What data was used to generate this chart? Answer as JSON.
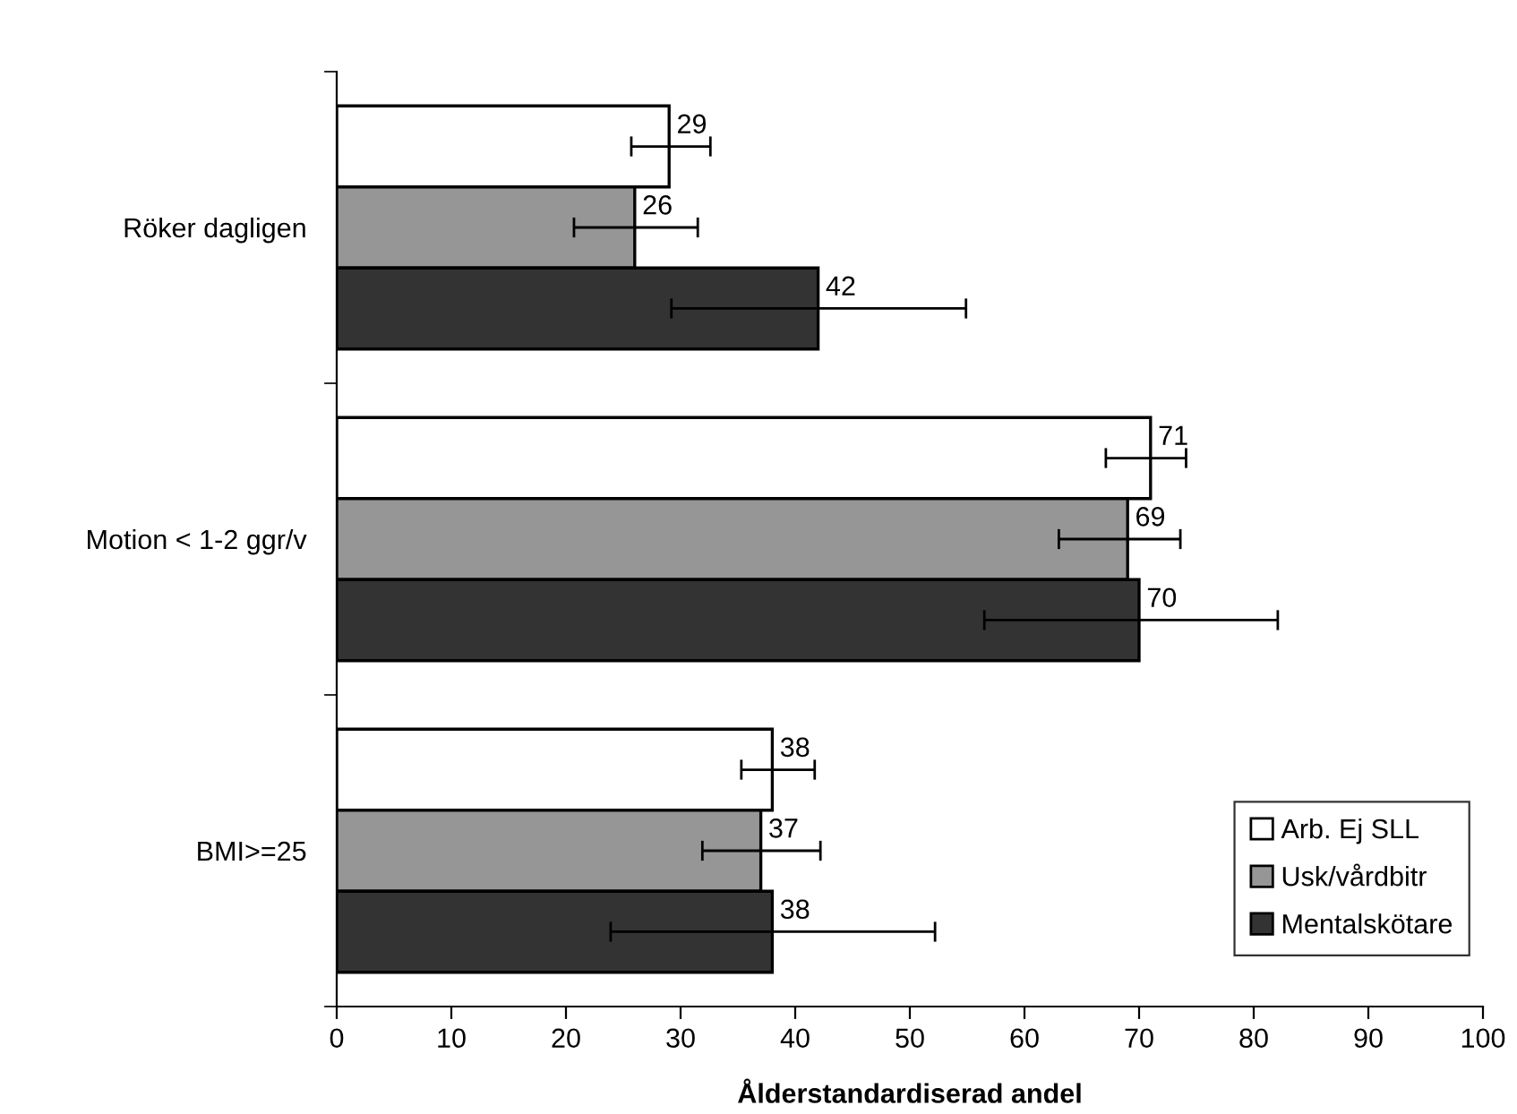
{
  "chart_data": {
    "type": "bar",
    "orientation": "horizontal",
    "xlabel": "Ålderstandardiserad andel",
    "categories": [
      "Röker dagligen",
      "Motion < 1-2 ggr/v",
      "BMI>=25"
    ],
    "series": [
      {
        "name": "Arb. Ej SLL",
        "color": "#ffffff",
        "values": [
          29,
          71,
          38
        ],
        "errors": [
          [
            25.7,
            32.6
          ],
          [
            67.1,
            74.1
          ],
          [
            35.3,
            41.7
          ]
        ]
      },
      {
        "name": "Usk/vårdbitr",
        "color": "#969696",
        "values": [
          26,
          69,
          37
        ],
        "errors": [
          [
            20.7,
            31.5
          ],
          [
            63.0,
            73.6
          ],
          [
            31.9,
            42.2
          ]
        ]
      },
      {
        "name": "Mentalskötare",
        "color": "#333333",
        "values": [
          42,
          70,
          38
        ],
        "errors": [
          [
            29.2,
            54.9
          ],
          [
            56.5,
            82.1
          ],
          [
            23.9,
            52.2
          ]
        ]
      }
    ],
    "xlim": [
      0,
      100
    ],
    "xticks": [
      0,
      10,
      20,
      30,
      40,
      50,
      60,
      70,
      80,
      90,
      100
    ],
    "data_labels": true,
    "legend": "bottom right",
    "grid": false
  }
}
